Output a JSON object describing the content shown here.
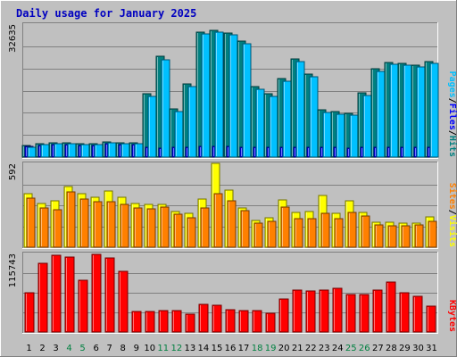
{
  "chart_data": {
    "type": "bar",
    "title": "Daily usage for January 2025",
    "categories": [
      "1",
      "2",
      "3",
      "4",
      "5",
      "6",
      "7",
      "8",
      "9",
      "10",
      "11",
      "12",
      "13",
      "14",
      "15",
      "16",
      "17",
      "18",
      "19",
      "20",
      "21",
      "22",
      "23",
      "24",
      "25",
      "26",
      "27",
      "28",
      "29",
      "30",
      "31"
    ],
    "weekend_days": [
      "4",
      "5",
      "11",
      "12",
      "18",
      "19",
      "25",
      "26"
    ],
    "panels": [
      {
        "name": "hits-files-pages",
        "ymax_label": "32635",
        "ylim": [
          0,
          32635
        ],
        "legend": [
          "Pages",
          "/",
          "Files",
          "/",
          "Hits"
        ],
        "legend_colors": [
          "#00c0ff",
          "#000000",
          "#0000ff",
          "#000000",
          "#008080"
        ],
        "series": [
          {
            "name": "Hits",
            "color": "#008080",
            "values": [
              2800,
              3300,
              3500,
              3600,
              3300,
              3300,
              3700,
              3600,
              3600,
              15500,
              24700,
              11800,
              17900,
              30700,
              31100,
              30500,
              28400,
              17300,
              15600,
              19200,
              24100,
              20400,
              11600,
              11200,
              10800,
              15700,
              21700,
              23200,
              23000,
              22600,
              23500
            ]
          },
          {
            "name": "Files",
            "color": "#0000ff",
            "values": [
              2600,
              2900,
              3000,
              3100,
              2900,
              2900,
              3200,
              3100,
              3100,
              2500,
              2200,
              2400,
              2500,
              2700,
              2700,
              2600,
              2500,
              2400,
              2300,
              2400,
              2400,
              2400,
              2300,
              2300,
              2200,
              2300,
              2300,
              2300,
              2300,
              2300,
              2300
            ]
          },
          {
            "name": "Pages",
            "color": "#00c0ff",
            "values": [
              2500,
              3000,
              3200,
              3300,
              3000,
              3100,
              3400,
              3300,
              3300,
              14800,
              23800,
              11100,
              17200,
              30200,
              30700,
              29900,
              27800,
              16700,
              15000,
              18600,
              23500,
              19800,
              11000,
              10600,
              10200,
              15100,
              21100,
              22700,
              22500,
              22100,
              22900
            ]
          }
        ]
      },
      {
        "name": "visits-sites",
        "ymax_label": "592",
        "ylim": [
          0,
          592
        ],
        "legend": [
          "Sites",
          "/",
          "Visits"
        ],
        "legend_colors": [
          "#ff8000",
          "#000000",
          "#ffff00"
        ],
        "series": [
          {
            "name": "Visits",
            "color": "#ffff00",
            "values": [
              375,
              310,
              325,
              430,
              380,
              350,
              395,
              355,
              310,
              300,
              305,
              255,
              240,
              340,
              595,
              405,
              280,
              190,
              205,
              335,
              245,
              255,
              365,
              240,
              330,
              245,
              175,
              175,
              170,
              170,
              215
            ]
          },
          {
            "name": "Sites",
            "color": "#ff8000",
            "values": [
              345,
              280,
              265,
              390,
              340,
              320,
              320,
              300,
              280,
              270,
              285,
              230,
              205,
              275,
              375,
              330,
              260,
              170,
              185,
              285,
              200,
              200,
              240,
              200,
              245,
              220,
              155,
              150,
              150,
              155,
              185
            ]
          }
        ]
      },
      {
        "name": "kbytes",
        "ymax_label": "115743",
        "ylim": [
          0,
          115743
        ],
        "legend": [
          "KBytes"
        ],
        "legend_colors": [
          "#ff0000"
        ],
        "series": [
          {
            "name": "KBytes",
            "color": "#ff0000",
            "values": [
              58000,
              101000,
              113000,
              111000,
              76000,
              114000,
              109000,
              90000,
              30000,
              30000,
              31000,
              31000,
              26000,
              41000,
              40000,
              33000,
              32000,
              32000,
              27000,
              49000,
              62000,
              60000,
              62000,
              64000,
              55000,
              55000,
              62000,
              74000,
              58000,
              52000,
              38000
            ]
          }
        ]
      }
    ]
  }
}
